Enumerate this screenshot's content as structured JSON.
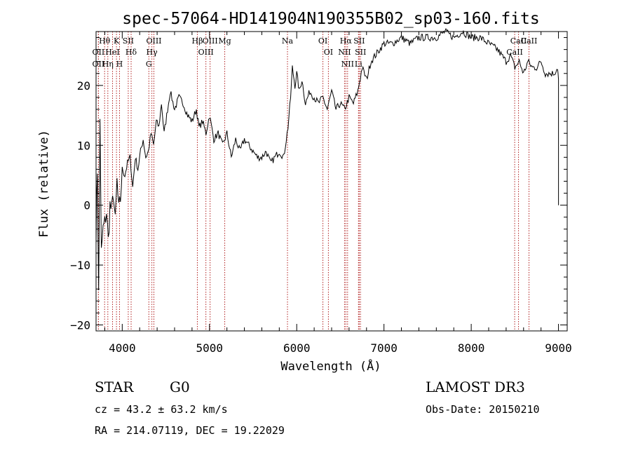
{
  "chart_data": {
    "type": "line",
    "title": "spec-57064-HD141904N190355B02_sp03-160.fits",
    "xlabel": "Wavelength (Å)",
    "ylabel": "Flux (relative)",
    "xlim": [
      3700,
      9100
    ],
    "ylim": [
      -21,
      29
    ],
    "xticks": [
      4000,
      5000,
      6000,
      7000,
      8000,
      9000
    ],
    "yticks": [
      -20,
      -10,
      0,
      10,
      20
    ],
    "grid": false,
    "legend": "none",
    "series": [
      {
        "name": "flux",
        "x": [
          3700,
          3715,
          3730,
          3745,
          3760,
          3780,
          3800,
          3820,
          3840,
          3860,
          3880,
          3900,
          3920,
          3940,
          3960,
          3980,
          4000,
          4030,
          4060,
          4090,
          4120,
          4150,
          4180,
          4210,
          4240,
          4270,
          4300,
          4330,
          4360,
          4390,
          4420,
          4450,
          4480,
          4510,
          4550,
          4600,
          4650,
          4700,
          4750,
          4800,
          4850,
          4880,
          4920,
          4960,
          5000,
          5050,
          5100,
          5150,
          5200,
          5250,
          5300,
          5350,
          5400,
          5450,
          5500,
          5550,
          5600,
          5650,
          5700,
          5750,
          5800,
          5850,
          5900,
          5930,
          5950,
          5980,
          6000,
          6030,
          6060,
          6100,
          6150,
          6200,
          6250,
          6300,
          6350,
          6400,
          6450,
          6500,
          6550,
          6600,
          6650,
          6700,
          6750,
          6800,
          6850,
          6900,
          6950,
          7000,
          7100,
          7200,
          7300,
          7400,
          7500,
          7600,
          7700,
          7800,
          7900,
          8000,
          8100,
          8200,
          8300,
          8400,
          8450,
          8500,
          8550,
          8600,
          8650,
          8700,
          8750,
          8800,
          8850,
          8900,
          8950,
          8990,
          9000
        ],
        "values": [
          -5,
          6,
          -15,
          15,
          -8,
          -4,
          -3,
          -1,
          -6,
          0,
          -1,
          2,
          -3,
          4,
          -1,
          1,
          6,
          5,
          7,
          8,
          3,
          8,
          6,
          9,
          11,
          8,
          9,
          12,
          10,
          14,
          13,
          17,
          12,
          15,
          19,
          16,
          18,
          17,
          15,
          14,
          16,
          13,
          14,
          12,
          15,
          11,
          12,
          10,
          12,
          8,
          11,
          9,
          11,
          10,
          9,
          8,
          8,
          9,
          7,
          8,
          9,
          8,
          13,
          18,
          23,
          20,
          22,
          19,
          21,
          17,
          19,
          18,
          17,
          18,
          16,
          19,
          16,
          17,
          16,
          18,
          17,
          19,
          23,
          21,
          24,
          25,
          26,
          27,
          27,
          28,
          27,
          28,
          28,
          28,
          29,
          28,
          29,
          28,
          28,
          27,
          26,
          24,
          25,
          23,
          24,
          22,
          24,
          23,
          23,
          24,
          22,
          22,
          22,
          23,
          21
        ]
      }
    ],
    "annotations": [
      {
        "label": "Hθ",
        "x": 3798
      },
      {
        "label": "OII",
        "x": 3727
      },
      {
        "label": "OII",
        "x": 3727
      },
      {
        "label": "Hη",
        "x": 3835
      },
      {
        "label": "HeI",
        "x": 3889
      },
      {
        "label": "K",
        "x": 3934
      },
      {
        "label": "SII",
        "x": 4069
      },
      {
        "label": "H",
        "x": 3969
      },
      {
        "label": "Hδ",
        "x": 4102
      },
      {
        "label": "OIII",
        "x": 4363
      },
      {
        "label": "Hγ",
        "x": 4340
      },
      {
        "label": "G",
        "x": 4305
      },
      {
        "label": "Hβ",
        "x": 4861
      },
      {
        "label": "OIII",
        "x": 5007
      },
      {
        "label": "OIII",
        "x": 4959
      },
      {
        "label": "Mg",
        "x": 5175
      },
      {
        "label": "Na",
        "x": 5894
      },
      {
        "label": "OI",
        "x": 6300
      },
      {
        "label": "OI",
        "x": 6363
      },
      {
        "label": "Hα",
        "x": 6563
      },
      {
        "label": "NII",
        "x": 6548
      },
      {
        "label": "NII",
        "x": 6583
      },
      {
        "label": "SII",
        "x": 6716
      },
      {
        "label": "SII",
        "x": 6731
      },
      {
        "label": "Li",
        "x": 6708
      },
      {
        "label": "CaII",
        "x": 8542
      },
      {
        "label": "CaII",
        "x": 8498
      },
      {
        "label": "CaII",
        "x": 8662
      }
    ],
    "line_markers_color": "#b22222"
  },
  "info": {
    "class": "STAR",
    "subclass": "G0",
    "survey": "LAMOST DR3",
    "cz": "cz = 43.2 ± 63.2 km/s",
    "obs_date": "Obs-Date: 20150210",
    "coords": "RA = 214.07119, DEC =  19.22029"
  }
}
